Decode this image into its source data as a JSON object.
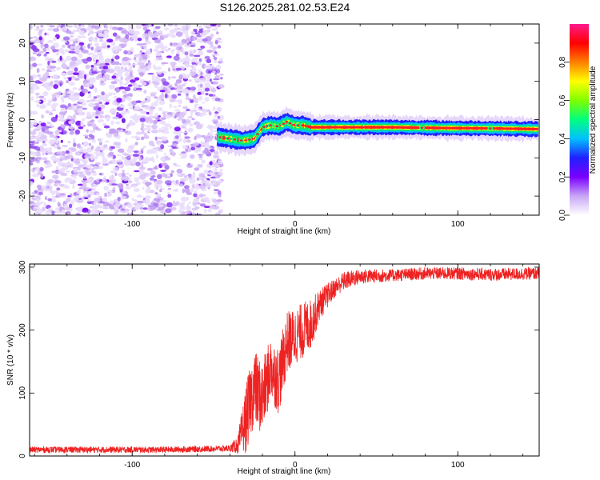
{
  "figure_title": "S126.2025.281.02.53.E24",
  "chart_data": [
    {
      "type": "heatmap",
      "title": "",
      "xlabel": "Height of straight line (km)",
      "ylabel": "Frequency (Hz)",
      "xlim": [
        -163,
        150
      ],
      "ylim": [
        -25,
        25
      ],
      "xticks": [
        -100,
        0,
        100
      ],
      "yticks": [
        -20,
        -10,
        0,
        10,
        20
      ],
      "noise_region_x": [
        -163,
        -45
      ],
      "signal_ridge": {
        "x": [
          -48,
          -40,
          -32,
          -25,
          -20,
          -15,
          -10,
          -5,
          0,
          5,
          10,
          30,
          60,
          90,
          120,
          150
        ],
        "frequency": [
          -4.5,
          -5,
          -5.5,
          -5,
          -2,
          -1.5,
          -1.8,
          -0.6,
          -1.5,
          -1.5,
          -2,
          -2,
          -2,
          -2.2,
          -2.3,
          -2.5
        ]
      },
      "colorbar": {
        "label": "Normalized spectral amplitude",
        "range": [
          0,
          1
        ],
        "ticks": [
          "0.0",
          "0.2",
          "0.4",
          "0.6",
          "0.8"
        ],
        "tick_values": [
          0.0,
          0.2,
          0.4,
          0.6,
          0.8
        ],
        "colors": [
          "#ffffff",
          "#c9a6f5",
          "#7a00ff",
          "#2020ff",
          "#00c0ff",
          "#00ff7f",
          "#7fff00",
          "#ffff00",
          "#ff8000",
          "#ff0000",
          "#ff1a8c"
        ]
      }
    },
    {
      "type": "line",
      "title": "",
      "xlabel": "Height of straight line (km)",
      "ylabel": "SNR (10 * v/v)",
      "xlim": [
        -163,
        150
      ],
      "ylim": [
        0,
        305
      ],
      "xticks": [
        -100,
        0,
        100
      ],
      "yticks": [
        0,
        100,
        200,
        300
      ],
      "color": "#ee2222",
      "series": [
        {
          "name": "SNR",
          "x": [
            -163,
            -120,
            -80,
            -40,
            -35,
            -30,
            -25,
            -20,
            -15,
            -10,
            -5,
            0,
            5,
            10,
            15,
            20,
            25,
            30,
            40,
            60,
            80,
            100,
            120,
            150
          ],
          "y": [
            10,
            10,
            10,
            12,
            18,
            60,
            110,
            90,
            140,
            120,
            180,
            190,
            200,
            210,
            240,
            255,
            268,
            278,
            285,
            287,
            290,
            290,
            288,
            290
          ],
          "noise_amplitude": [
            5,
            5,
            5,
            5,
            15,
            55,
            60,
            60,
            50,
            55,
            50,
            45,
            45,
            40,
            25,
            20,
            15,
            15,
            12,
            10,
            10,
            10,
            10,
            10
          ]
        }
      ]
    }
  ]
}
